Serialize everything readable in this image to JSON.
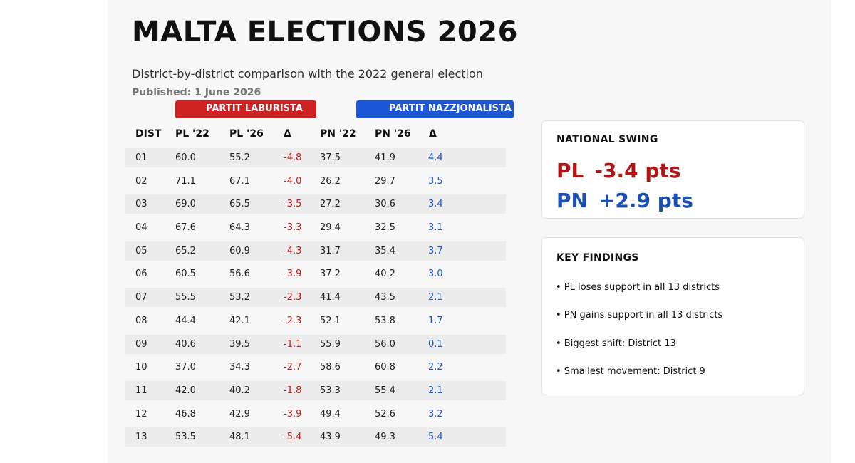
{
  "header": {
    "title": "MALTA ELECTIONS 2026",
    "subtitle": "District-by-district comparison with the 2022 general election",
    "published": "Published: 1 June 2026"
  },
  "parties": {
    "pl": {
      "label": "PARTIT LABURISTA",
      "color": "#cc2222"
    },
    "pn": {
      "label": "PARTIT NAZZJONALISTA",
      "color": "#1a56d6"
    }
  },
  "chart_data": {
    "type": "table",
    "columns": [
      "DIST",
      "PL '22",
      "PL '26",
      "Δ",
      "PN '22",
      "PN '26",
      "Δ"
    ],
    "rows": [
      [
        "01",
        "60.0",
        "55.2",
        "-4.8",
        "37.5",
        "41.9",
        "4.4"
      ],
      [
        "02",
        "71.1",
        "67.1",
        "-4.0",
        "26.2",
        "29.7",
        "3.5"
      ],
      [
        "03",
        "69.0",
        "65.5",
        "-3.5",
        "27.2",
        "30.6",
        "3.4"
      ],
      [
        "04",
        "67.6",
        "64.3",
        "-3.3",
        "29.4",
        "32.5",
        "3.1"
      ],
      [
        "05",
        "65.2",
        "60.9",
        "-4.3",
        "31.7",
        "35.4",
        "3.7"
      ],
      [
        "06",
        "60.5",
        "56.6",
        "-3.9",
        "37.2",
        "40.2",
        "3.0"
      ],
      [
        "07",
        "55.5",
        "53.2",
        "-2.3",
        "41.4",
        "43.5",
        "2.1"
      ],
      [
        "08",
        "44.4",
        "42.1",
        "-2.3",
        "52.1",
        "53.8",
        "1.7"
      ],
      [
        "09",
        "40.6",
        "39.5",
        "-1.1",
        "55.9",
        "56.0",
        "0.1"
      ],
      [
        "10",
        "37.0",
        "34.3",
        "-2.7",
        "58.6",
        "60.8",
        "2.2"
      ],
      [
        "11",
        "42.0",
        "40.2",
        "-1.8",
        "53.3",
        "55.4",
        "2.1"
      ],
      [
        "12",
        "46.8",
        "42.9",
        "-3.9",
        "49.4",
        "52.6",
        "3.2"
      ],
      [
        "13",
        "53.5",
        "48.1",
        "-5.4",
        "43.9",
        "49.3",
        "5.4"
      ]
    ]
  },
  "swing": {
    "title": "NATIONAL SWING",
    "pl_party": "PL",
    "pl_value": "-3.4 pts",
    "pn_party": "PN",
    "pn_value": "+2.9 pts"
  },
  "findings": {
    "title": "KEY FINDINGS",
    "items": [
      "• PL loses support in all 13 districts",
      "• PN gains support in all 13 districts",
      "• Biggest shift: District 13",
      "• Smallest movement: District 9"
    ]
  }
}
